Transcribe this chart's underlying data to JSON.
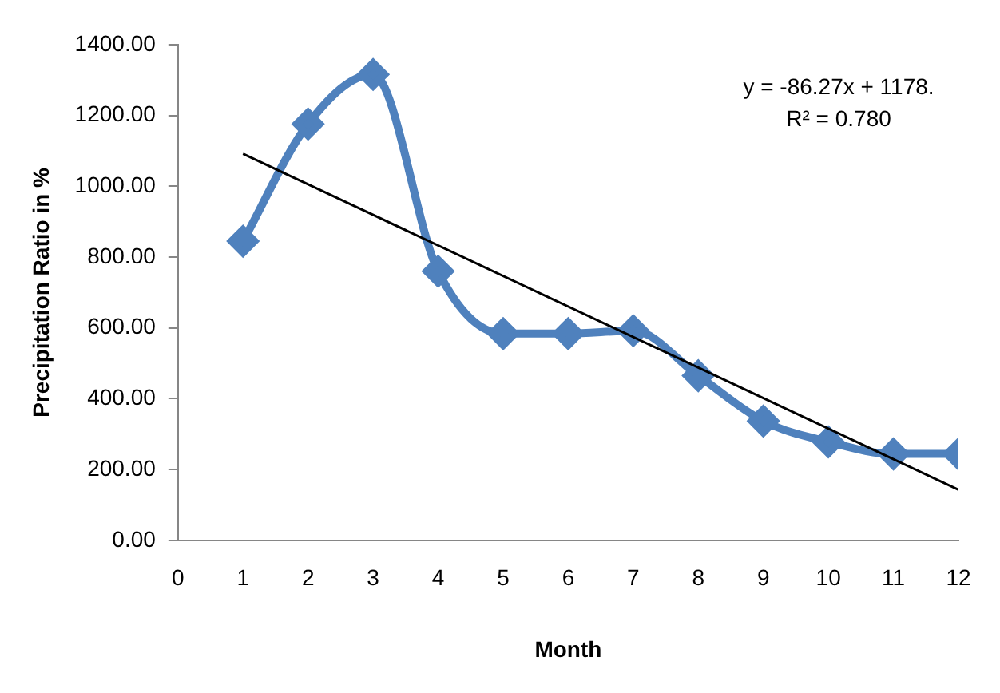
{
  "chart_data": {
    "type": "line",
    "xlabel": "Month",
    "ylabel": "Precipitation Ratio in %",
    "x": [
      1,
      2,
      3,
      4,
      5,
      6,
      7,
      8,
      9,
      10,
      11,
      12
    ],
    "series": [
      {
        "color": "#4f81bd",
        "values": [
          845,
          1176,
          1316,
          760,
          584,
          584,
          592,
          465,
          337,
          278,
          244,
          244
        ]
      },
      {
        "type": "line",
        "color": "#000000",
        "x": [
          1,
          12
        ],
        "values": [
          1092,
          143
        ],
        "marker": "none"
      }
    ],
    "xlim": [
      0,
      12
    ],
    "xticks": [
      0,
      1,
      2,
      3,
      4,
      5,
      6,
      7,
      8,
      9,
      10,
      11,
      12
    ],
    "ylim": [
      0,
      1400
    ],
    "yticks": [
      {
        "value": 0,
        "label": "0.00"
      },
      {
        "value": 200,
        "label": "200.00"
      },
      {
        "value": 400,
        "label": "400.00"
      },
      {
        "value": 600,
        "label": "600.00"
      },
      {
        "value": 800,
        "label": "800.00"
      },
      {
        "value": 1000,
        "label": "1000.00"
      },
      {
        "value": 1200,
        "label": "1200.00"
      },
      {
        "value": 1400,
        "label": "1400.00"
      }
    ],
    "annotations": [
      "y = -86.27x + 1178.",
      "R² = 0.780"
    ],
    "marker": "diamond",
    "grid": false,
    "legend": false
  }
}
